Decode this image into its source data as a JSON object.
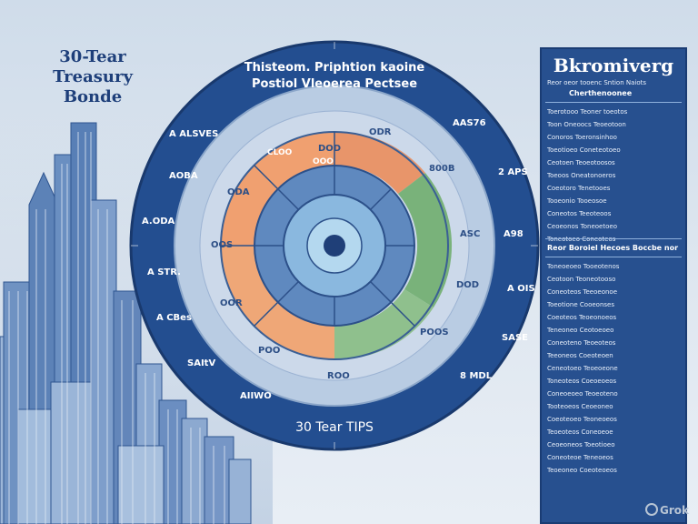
{
  "left_title": [
    "30-Tear",
    "Treasury",
    "Bonde"
  ],
  "dial": {
    "title_lines": [
      "Thisteom. Priphtion kaoine",
      "Postiol Vleoerea Pectsee"
    ],
    "bottom_label": "30 Tear TIPS",
    "outer_labels_left": [
      "A ALSVES",
      "AOBA",
      "A.ODA",
      "A STR.",
      "A CBes",
      "SAItV",
      "AIIWO"
    ],
    "outer_labels_right": [
      "AAS76",
      "2 APS",
      "A98",
      "A OIS",
      "SASE",
      "8 MDL"
    ],
    "middle_labels": [
      "ODR",
      "ODA",
      "OOS",
      "OOR",
      "POO",
      "POOS",
      "800B",
      "ASC",
      "DOD",
      "DOD",
      "ROO"
    ],
    "segment_labels": [
      "CLOO",
      "OOO"
    ],
    "colors": {
      "outer_ring": "#234e90",
      "orange": "#f0a070",
      "green": "#79b27a",
      "inner_blue": "#5f89bf",
      "core": "#9dc6e6"
    }
  },
  "panel": {
    "title": "Bkromiverg",
    "subtitle": "Reor oeor tooenc Sntion Naiots",
    "heading": "Cherthenoonee",
    "lines": [
      "Toerotooo Teoner toeotos",
      "Toon Oneoocs Teoeotoon",
      "Conoros Toeronsinhoo",
      "Toeotioeo Coneteotoeo",
      "Ceotoen Teoeotoosos",
      "Toeoos Oneatonoeros",
      "Coeotoro Tenetooes",
      "Tooeonio Tooeosoe",
      "Coneotos Teeoteoos",
      "Ceoeonos Toneoetoeo",
      "Toneotoeo Coneoteos"
    ],
    "section2_heading": "Reor Boroiel Hecoes Boccbe nor",
    "section2_lines": [
      "Toneoeoeo Tooeotenos",
      "Ceotoon Teoneotooso",
      "Coneoteos Teeoeonoe",
      "Toeotione Cooeonses",
      "Coeoteos Teoeonoeos",
      "Teneoneo Ceotoeoeo",
      "Coneoteno Teoeoteos",
      "Teeoneos Coeoteoen",
      "Ceneotoeo Teoeoeone",
      "Toneoteos Coeoeoeos",
      "Coneoeoeo Teoeoteno",
      "Tooteoeos Ceoeoneo",
      "Coeoteoeo Teoneoeos",
      "Teoeoteos Coneoeoe",
      "Ceoeoneos Toeotioeo",
      "Coneoteoe Teneoeos",
      "Teoeoneo Coeoteoeos"
    ]
  },
  "watermark": "Grok"
}
